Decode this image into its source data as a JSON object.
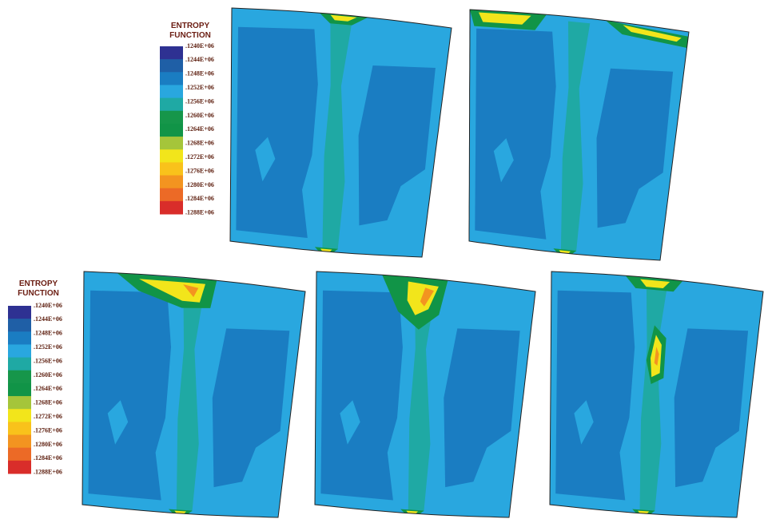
{
  "legend": {
    "title": [
      "ENTROPY",
      "FUNCTION"
    ],
    "levels": [
      {
        "label": ".1240E+06",
        "color": "#2e3192"
      },
      {
        "label": ".1244E+06",
        "color": "#1f5fa6"
      },
      {
        "label": ".1248E+06",
        "color": "#1a7dc2"
      },
      {
        "label": ".1252E+06",
        "color": "#29a7df"
      },
      {
        "label": ".1256E+06",
        "color": "#1fa9a4"
      },
      {
        "label": ".1260E+06",
        "color": "#16964a"
      },
      {
        "label": ".1264E+06",
        "color": "#119447"
      },
      {
        "label": ".1268E+06",
        "color": "#a5c53a"
      },
      {
        "label": ".1272E+06",
        "color": "#f2e51b"
      },
      {
        "label": ".1276E+06",
        "color": "#f9c21b"
      },
      {
        "label": ".1280E+06",
        "color": "#f39420"
      },
      {
        "label": ".1284E+06",
        "color": "#ec6a26"
      },
      {
        "label": ".1288E+06",
        "color": "#d92d2a"
      }
    ]
  }
}
